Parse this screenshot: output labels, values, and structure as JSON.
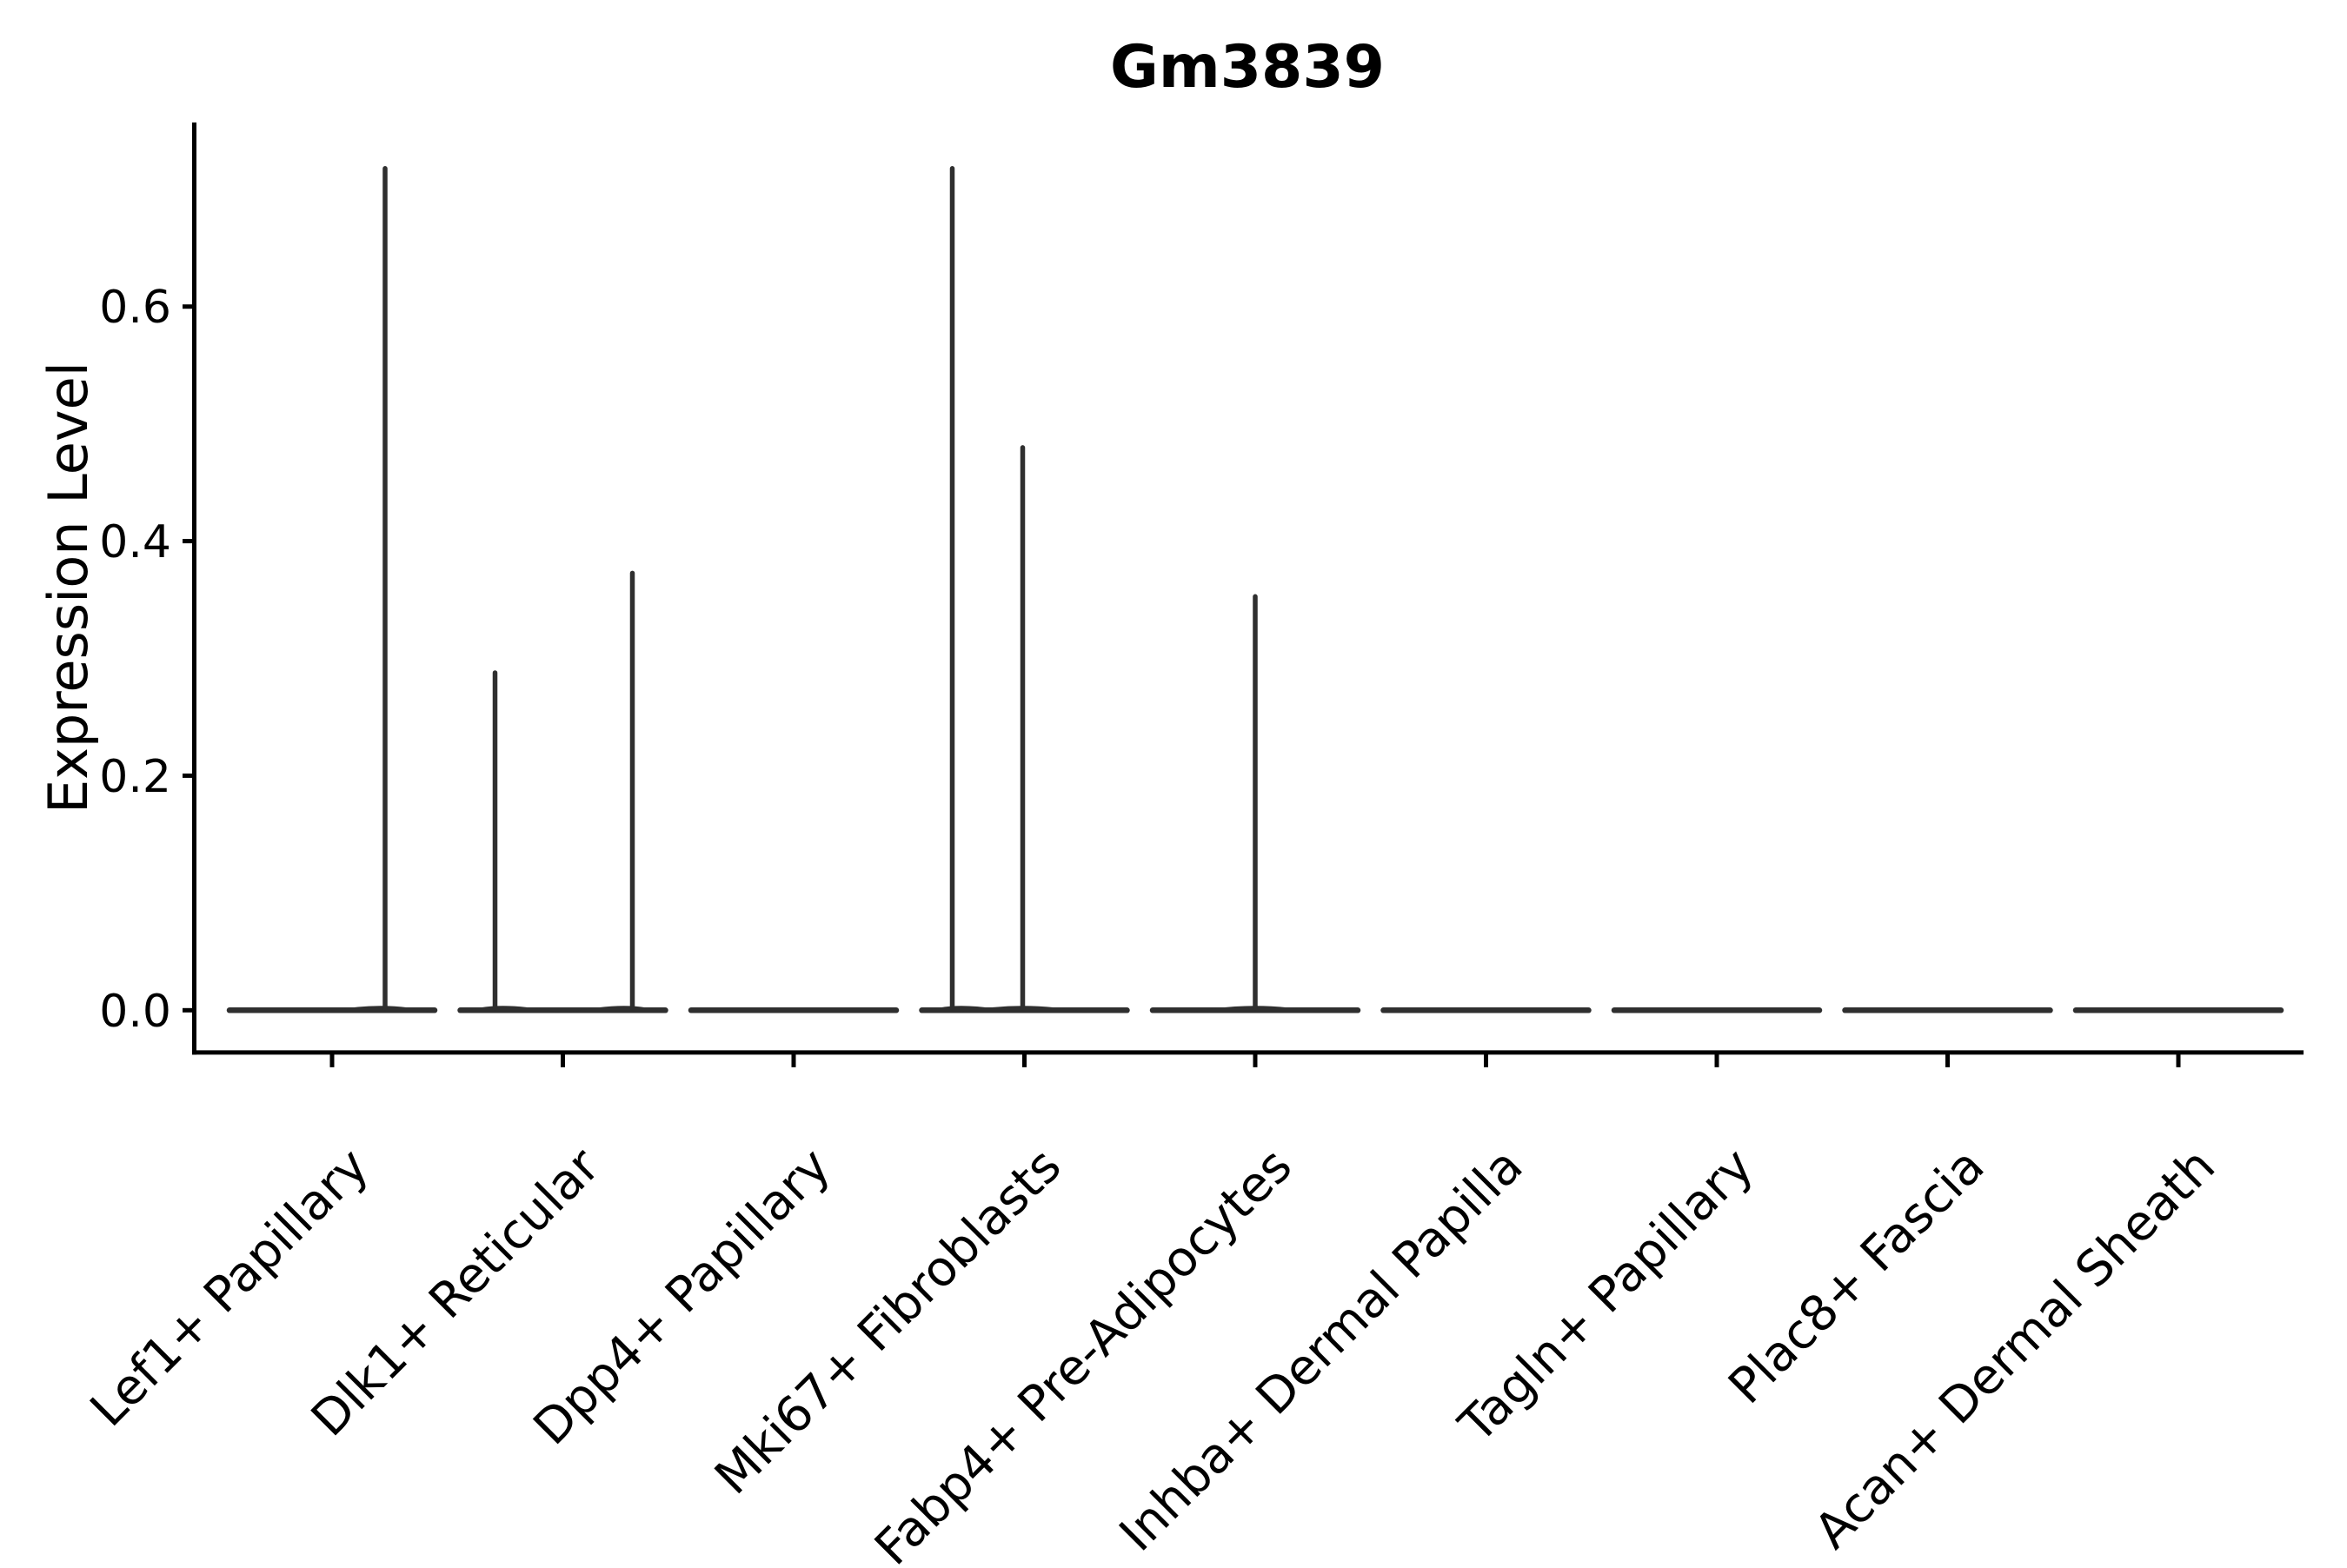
{
  "chart_data": {
    "type": "violin",
    "title": "Gm3839",
    "ylabel": "Expression Level",
    "xlabel": "",
    "grid": false,
    "legend": null,
    "background": "#ffffff",
    "categories": [
      "Lef1+ Papillary",
      "Dlk1+ Reticular",
      "Dpp4+ Papillary",
      "Mki67+ Fibroblasts",
      "Fabp4+ Pre-Adipocytes",
      "Inhba+ Dermal Papilla",
      "Tagln+ Papillary",
      "Plac8+ Fascia",
      "Acan+ Dermal Sheath"
    ],
    "ytick_labels": [
      "0.0",
      "0.2",
      "0.4",
      "0.6"
    ],
    "ytick_values": [
      0.0,
      0.2,
      0.4,
      0.6
    ],
    "ylim": [
      -0.036,
      0.757
    ],
    "xtick_rotation_deg": 45,
    "violins": [
      {
        "category": "Lef1+ Papillary",
        "baseline_value": 0.0,
        "spikes": [
          {
            "x_offset": 61,
            "value": 0.72
          }
        ]
      },
      {
        "category": "Dlk1+ Reticular",
        "baseline_value": 0.0,
        "spikes": [
          {
            "x_offset": -78,
            "value": 0.29
          },
          {
            "x_offset": 80,
            "value": 0.375
          }
        ]
      },
      {
        "category": "Dpp4+ Papillary",
        "baseline_value": 0.0,
        "spikes": []
      },
      {
        "category": "Mki67+ Fibroblasts",
        "baseline_value": 0.0,
        "spikes": [
          {
            "x_offset": -83,
            "value": 0.72
          },
          {
            "x_offset": -2,
            "value": 0.482
          }
        ]
      },
      {
        "category": "Fabp4+ Pre-Adipocytes",
        "baseline_value": 0.0,
        "spikes": [
          {
            "x_offset": 0,
            "value": 0.355
          }
        ]
      },
      {
        "category": "Inhba+ Dermal Papilla",
        "baseline_value": 0.0,
        "spikes": []
      },
      {
        "category": "Tagln+ Papillary",
        "baseline_value": 0.0,
        "spikes": []
      },
      {
        "category": "Plac8+ Fascia",
        "baseline_value": 0.0,
        "spikes": []
      },
      {
        "category": "Acan+ Dermal Sheath",
        "baseline_value": 0.0,
        "spikes": []
      }
    ],
    "colors": {
      "violin": "#2f2f2f",
      "axis": "#000000",
      "text": "#000000",
      "background": "#ffffff"
    }
  }
}
